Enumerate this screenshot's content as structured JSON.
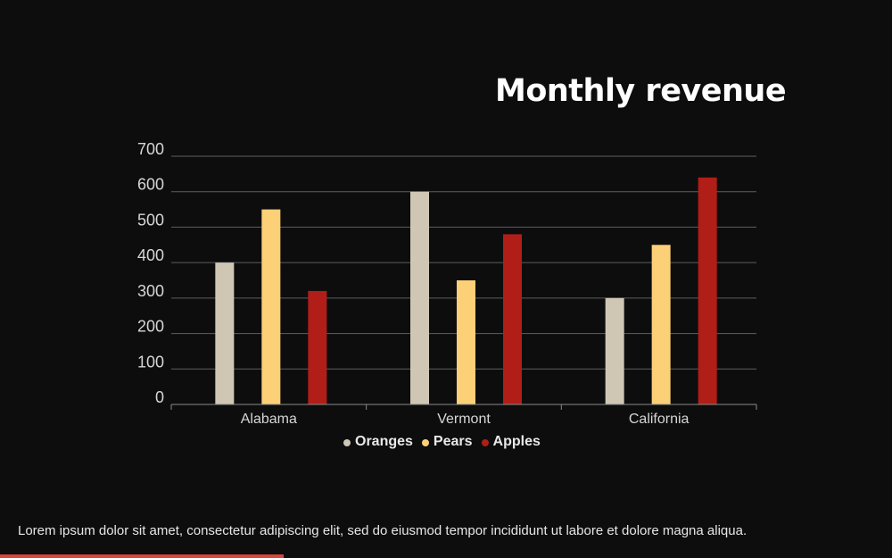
{
  "colors": {
    "Oranges": "#cfc6b4",
    "Pears": "#fcd077",
    "Apples": "#b11e17",
    "accent": "#d8463b"
  },
  "caption": "Lorem ipsum dolor sit amet, consectetur adipiscing elit, sed do eiusmod tempor incididunt ut labore et dolore magna aliqua.",
  "chart_data": {
    "type": "bar",
    "title": "Monthly revenue",
    "categories": [
      "Alabama",
      "Vermont",
      "California"
    ],
    "series": [
      {
        "name": "Oranges",
        "values": [
          400,
          600,
          300
        ]
      },
      {
        "name": "Pears",
        "values": [
          550,
          350,
          450
        ]
      },
      {
        "name": "Apples",
        "values": [
          320,
          480,
          640
        ]
      }
    ],
    "yticks": [
      0,
      100,
      200,
      300,
      400,
      500,
      600,
      700
    ],
    "ylim": [
      0,
      700
    ],
    "xlabel": "",
    "ylabel": "",
    "grid": true,
    "legend_position": "bottom"
  }
}
